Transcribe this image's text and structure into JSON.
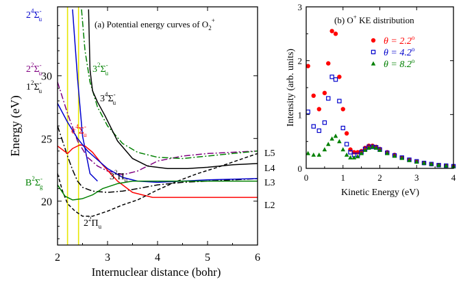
{
  "chart_data": [
    {
      "type": "line",
      "title": "(a) Potential energy curves of O",
      "title_sub": "2",
      "title_sup": "+",
      "xlabel": "Internuclear distance (bohr)",
      "ylabel": "Energy (eV)",
      "xlim": [
        2,
        6
      ],
      "ylim": [
        16.5,
        35.5
      ],
      "xticks": [
        2,
        3,
        4,
        5,
        6
      ],
      "yticks": [
        20,
        25,
        30
      ],
      "vertical_lines": [
        2.2,
        2.42
      ],
      "vertical_line_color": "#e6e600",
      "series": [
        {
          "label_main": "2",
          "label_sup": "4",
          "label_term": "Σ",
          "label_tsup": "-",
          "label_tsub": "u",
          "color": "#0000cc",
          "dash": "solid",
          "x": [
            2.3,
            2.35,
            2.4,
            2.5,
            2.65,
            2.8
          ],
          "y": [
            35.3,
            32.5,
            29.8,
            25.2,
            22.2,
            21.6
          ]
        },
        {
          "label_main": "2",
          "label_sup": "2",
          "label_term": "Σ",
          "label_tsup": "-",
          "label_tsub": "u",
          "color": "#800080",
          "dash": "dashdot",
          "x": [
            2.0,
            2.2,
            2.4,
            2.6,
            2.8,
            3.0,
            3.3,
            3.6,
            4.0,
            4.5,
            5.0,
            5.5,
            6.0
          ],
          "y": [
            29.5,
            27.0,
            24.8,
            23.5,
            22.8,
            22.4,
            22.1,
            22.4,
            23.2,
            23.6,
            23.8,
            23.9,
            24.0
          ]
        },
        {
          "label_main": "1",
          "label_sup": "2",
          "label_term": "Σ",
          "label_tsup": "-",
          "label_tsub": "u",
          "color": "#000000",
          "dash": "dashdot",
          "x": [
            2.0,
            2.1,
            2.2,
            2.3,
            2.4,
            2.5,
            2.7,
            3.0,
            3.3,
            3.6,
            4.0,
            4.5,
            5.0,
            5.5,
            6.0
          ],
          "y": [
            26.0,
            24.8,
            23.6,
            22.5,
            21.6,
            21.1,
            20.8,
            20.7,
            20.8,
            21.0,
            21.3,
            21.5,
            21.6,
            21.7,
            21.8
          ]
        },
        {
          "label_main": "c",
          "label_sup": "4",
          "label_term": "Σ",
          "label_tsup": "-",
          "label_tsub": "u",
          "color": "#ff0000",
          "dash": "solid",
          "x": [
            2.0,
            2.2,
            2.3,
            2.45,
            2.55,
            2.7,
            2.9,
            3.2,
            3.5,
            3.9,
            4.5,
            5.0,
            6.0
          ],
          "y": [
            24.4,
            23.8,
            24.2,
            24.5,
            24.4,
            23.9,
            22.9,
            21.6,
            20.7,
            20.3,
            20.3,
            20.3,
            20.3
          ]
        },
        {
          "label_main": "3",
          "label_sup": "2",
          "label_term": "Σ",
          "label_tsup": "-",
          "label_tsub": "u",
          "color": "#008000",
          "dash": "dashdot",
          "x": [
            2.48,
            2.55,
            2.65,
            2.8,
            3.0,
            3.3,
            3.6,
            4.0,
            4.5,
            5.0,
            5.5,
            6.0
          ],
          "y": [
            35.3,
            32.0,
            29.5,
            27.5,
            26.0,
            24.6,
            23.9,
            23.5,
            23.4,
            23.6,
            23.8,
            24.0
          ]
        },
        {
          "label_main": "3",
          "label_sup": "4",
          "label_term": "Σ",
          "label_tsup": "-",
          "label_tsub": "u",
          "color": "#000000",
          "dash": "solid",
          "x": [
            2.62,
            2.65,
            2.7,
            2.8,
            2.95,
            3.2,
            3.5,
            3.8,
            4.2,
            4.6,
            5.0,
            5.5,
            6.0
          ],
          "y": [
            35.3,
            30.5,
            28.8,
            27.9,
            26.8,
            24.8,
            23.4,
            22.8,
            22.6,
            22.6,
            22.7,
            22.9,
            23.0
          ]
        },
        {
          "label_main": "3",
          "label_sup": "2",
          "label_term": "Π",
          "label_tsup": "",
          "label_tsub": "u",
          "color": "#0000cc",
          "dash": "solid",
          "x": [
            2.0,
            2.2,
            2.4,
            2.6,
            2.8,
            3.0,
            3.3,
            3.6,
            4.0,
            4.5,
            5.0,
            6.0
          ],
          "y": [
            27.8,
            26.3,
            25.0,
            24.0,
            23.3,
            22.6,
            21.9,
            21.6,
            21.5,
            21.6,
            21.7,
            21.8
          ]
        },
        {
          "label_main": "2",
          "label_sup": "2",
          "label_term": "Π",
          "label_tsup": "",
          "label_tsub": "u",
          "color": "#000000",
          "dash": "dashed",
          "x": [
            2.0,
            2.1,
            2.2,
            2.35,
            2.5,
            2.7,
            3.0,
            3.3,
            3.6,
            4.0,
            4.4,
            4.8,
            5.2,
            6.0
          ],
          "y": [
            22.2,
            20.8,
            19.8,
            19.2,
            18.8,
            18.8,
            19.2,
            19.7,
            20.1,
            20.9,
            21.6,
            22.2,
            22.7,
            23.8
          ]
        },
        {
          "label_main": "B",
          "label_sup": "2",
          "label_term": "Σ",
          "label_tsup": "-",
          "label_tsub": "g",
          "color": "#008000",
          "dash": "solid",
          "x": [
            2.0,
            2.15,
            2.3,
            2.5,
            2.7,
            2.9,
            3.2,
            3.5,
            4.0,
            4.5,
            5.0,
            6.0
          ],
          "y": [
            21.3,
            20.4,
            20.1,
            20.2,
            20.5,
            21.0,
            21.4,
            21.6,
            21.6,
            21.6,
            21.6,
            21.6
          ]
        }
      ],
      "asymptote_labels": [
        "L5",
        "L4",
        "L3",
        "L2"
      ]
    },
    {
      "type": "scatter",
      "title": "(b) O",
      "title_sup": "+",
      "title_rest": " KE distribution",
      "xlabel": "Kinetic Energy (eV)",
      "ylabel": "Intensity (arb. units)",
      "xlim": [
        0,
        4
      ],
      "ylim": [
        0,
        3
      ],
      "xticks": [
        0,
        1,
        2,
        3,
        4
      ],
      "yticks": [
        0,
        1,
        2,
        3
      ],
      "series": [
        {
          "name_prefix": "θ = 2.2",
          "name_sup": "o",
          "color": "#ff0000",
          "marker": "circle",
          "x": [
            0.05,
            0.2,
            0.35,
            0.5,
            0.6,
            0.7,
            0.8,
            0.9,
            1.0,
            1.1,
            1.2,
            1.3,
            1.4,
            1.5,
            1.6,
            1.7,
            1.8,
            1.9,
            2.0,
            2.2,
            2.4,
            2.6,
            2.8,
            3.0,
            3.2,
            3.4,
            3.6,
            3.8,
            4.0
          ],
          "y": [
            1.9,
            1.35,
            1.1,
            1.4,
            1.95,
            2.55,
            2.5,
            1.7,
            1.1,
            0.65,
            0.35,
            0.3,
            0.3,
            0.32,
            0.38,
            0.42,
            0.42,
            0.4,
            0.36,
            0.3,
            0.25,
            0.2,
            0.16,
            0.13,
            0.1,
            0.08,
            0.06,
            0.05,
            0.04
          ]
        },
        {
          "name_prefix": "θ = 4.2",
          "name_sup": "o",
          "color": "#0000cc",
          "marker": "square",
          "x": [
            0.05,
            0.2,
            0.35,
            0.5,
            0.6,
            0.7,
            0.8,
            0.9,
            1.0,
            1.1,
            1.2,
            1.3,
            1.4,
            1.5,
            1.6,
            1.7,
            1.8,
            1.9,
            2.0,
            2.2,
            2.4,
            2.6,
            2.8,
            3.0,
            3.2,
            3.4,
            3.6,
            3.8,
            4.0
          ],
          "y": [
            1.05,
            0.78,
            0.7,
            0.85,
            1.3,
            1.7,
            1.65,
            1.25,
            0.75,
            0.45,
            0.3,
            0.25,
            0.25,
            0.3,
            0.36,
            0.4,
            0.4,
            0.39,
            0.35,
            0.29,
            0.24,
            0.2,
            0.16,
            0.13,
            0.1,
            0.08,
            0.06,
            0.05,
            0.04
          ]
        },
        {
          "name_prefix": "θ = 8.2",
          "name_sup": "o",
          "color": "#008000",
          "marker": "triangle",
          "x": [
            0.05,
            0.2,
            0.35,
            0.5,
            0.6,
            0.7,
            0.8,
            0.9,
            1.0,
            1.1,
            1.2,
            1.3,
            1.4,
            1.5,
            1.6,
            1.7,
            1.8,
            1.9,
            2.0,
            2.2,
            2.4,
            2.6,
            2.8,
            3.0,
            3.2,
            3.4,
            3.6,
            3.8,
            4.0
          ],
          "y": [
            0.28,
            0.25,
            0.25,
            0.35,
            0.45,
            0.55,
            0.6,
            0.5,
            0.35,
            0.25,
            0.2,
            0.2,
            0.22,
            0.28,
            0.34,
            0.38,
            0.4,
            0.38,
            0.34,
            0.28,
            0.23,
            0.19,
            0.15,
            0.12,
            0.1,
            0.08,
            0.06,
            0.05,
            0.04
          ]
        }
      ]
    }
  ]
}
